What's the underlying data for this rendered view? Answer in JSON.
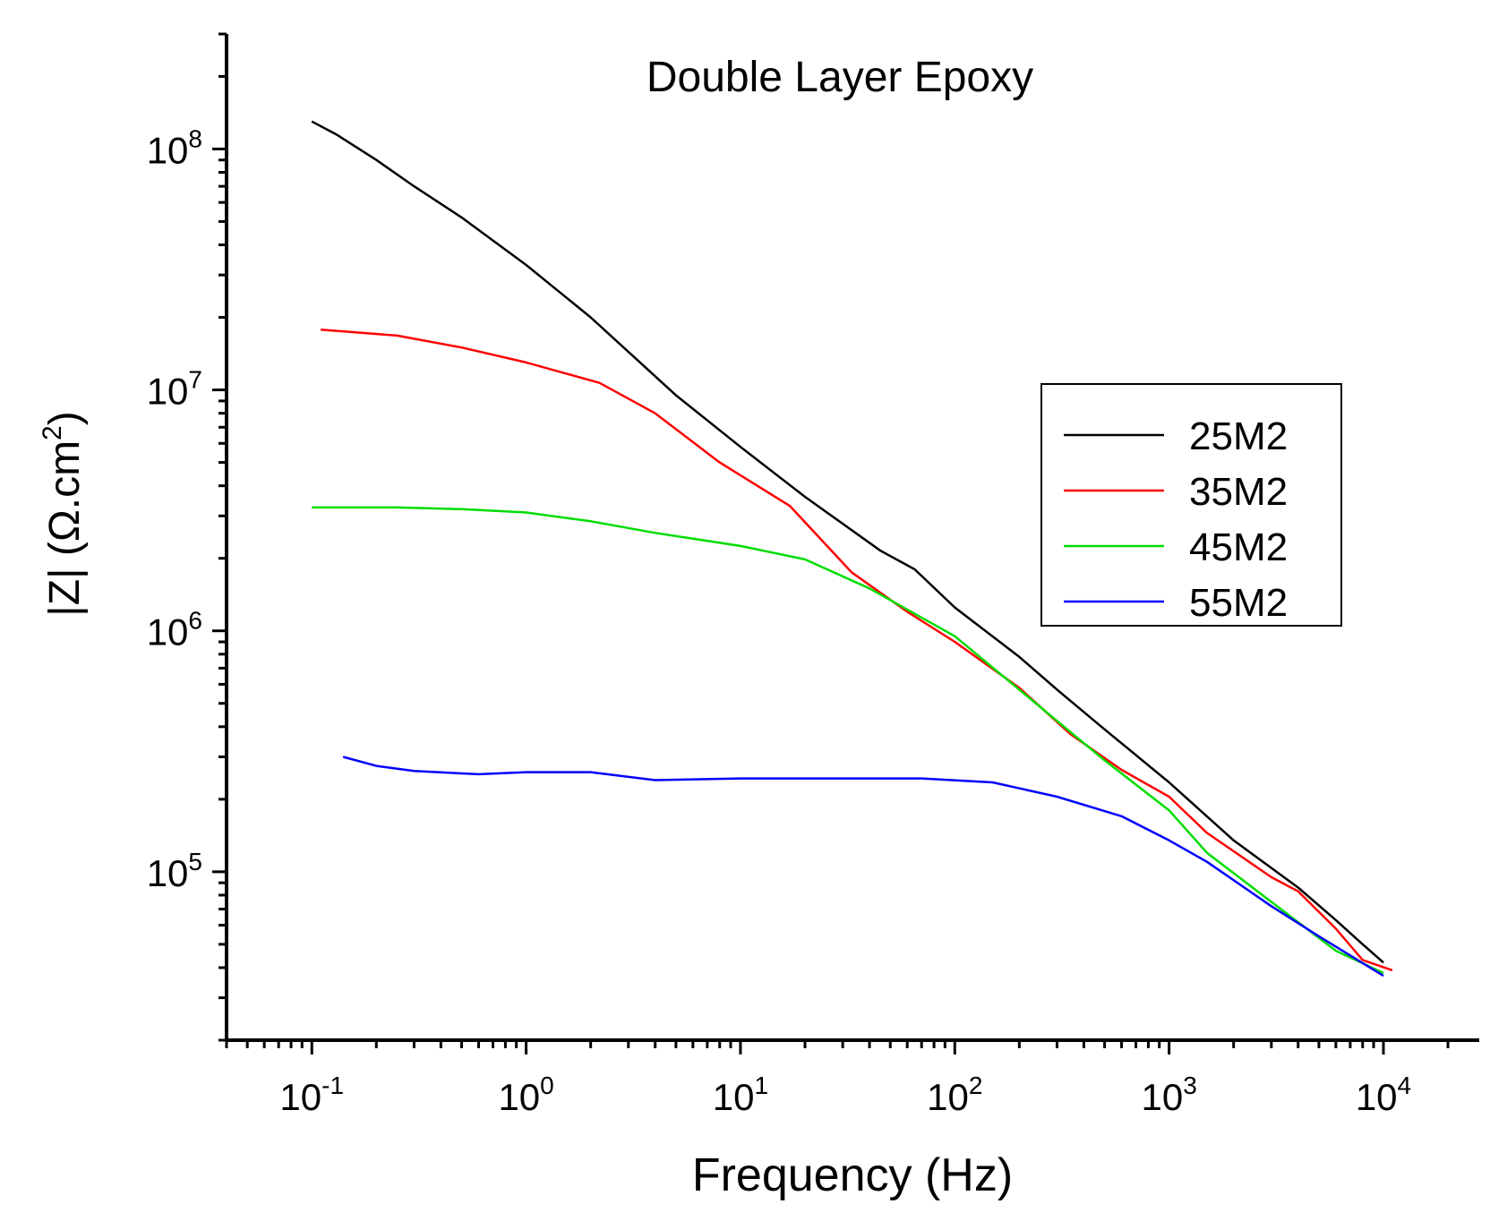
{
  "chart_data": {
    "type": "line",
    "title": "Double Layer Epoxy",
    "xlabel": "Frequency (Hz)",
    "ylabel_main": "|Z| (Ω.cm",
    "ylabel_sup": "2",
    "ylabel_end": ")",
    "x_scale": "log",
    "y_scale": "log",
    "xlim": [
      0.04,
      28000
    ],
    "ylim": [
      20000,
      300000000
    ],
    "x_ticks": [
      {
        "base": "10",
        "exp": "-1",
        "value": 0.1
      },
      {
        "base": "10",
        "exp": "0",
        "value": 1
      },
      {
        "base": "10",
        "exp": "1",
        "value": 10
      },
      {
        "base": "10",
        "exp": "2",
        "value": 100
      },
      {
        "base": "10",
        "exp": "3",
        "value": 1000
      },
      {
        "base": "10",
        "exp": "4",
        "value": 10000
      }
    ],
    "y_ticks": [
      {
        "base": "10",
        "exp": "5",
        "value": 100000
      },
      {
        "base": "10",
        "exp": "6",
        "value": 1000000
      },
      {
        "base": "10",
        "exp": "7",
        "value": 10000000
      },
      {
        "base": "10",
        "exp": "8",
        "value": 100000000
      }
    ],
    "legend_position": "right",
    "series": [
      {
        "name": "25M2",
        "color": "#000000",
        "x": [
          0.1,
          0.13,
          0.2,
          0.3,
          0.5,
          1,
          2,
          5,
          10,
          20,
          45,
          65,
          100,
          200,
          300,
          500,
          1000,
          2000,
          4000,
          6000,
          8000,
          10000
        ],
        "y": [
          130000000,
          115000000,
          90000000,
          70000000,
          52000000,
          33000000,
          20000000,
          9500000,
          5800000,
          3600000,
          2150000,
          1800000,
          1250000,
          780000,
          570000,
          390000,
          235000,
          135000,
          86000,
          63000,
          50000,
          42000
        ]
      },
      {
        "name": "35M2",
        "color": "#ff0000",
        "x": [
          0.11,
          0.25,
          0.5,
          1,
          2.2,
          4,
          8,
          17,
          33,
          60,
          100,
          200,
          350,
          600,
          1000,
          1500,
          3000,
          4000,
          6000,
          8000,
          11000
        ],
        "y": [
          17800000,
          16800000,
          15000000,
          13000000,
          10700000,
          8000000,
          5000000,
          3300000,
          1750000,
          1200000,
          900000,
          580000,
          370000,
          265000,
          205000,
          145000,
          95000,
          83000,
          58000,
          43000,
          39000
        ]
      },
      {
        "name": "45M2",
        "color": "#00dd00",
        "x": [
          0.1,
          0.25,
          0.5,
          1,
          2,
          4,
          10,
          20,
          40,
          100,
          200,
          500,
          1000,
          1500,
          3000,
          6000,
          10000
        ],
        "y": [
          3250000,
          3250000,
          3200000,
          3100000,
          2850000,
          2550000,
          2250000,
          1980000,
          1500000,
          950000,
          570000,
          290000,
          180000,
          120000,
          75000,
          47000,
          38000
        ]
      },
      {
        "name": "55M2",
        "color": "#0000ff",
        "x": [
          0.14,
          0.2,
          0.3,
          0.6,
          1,
          2,
          4,
          10,
          30,
          70,
          150,
          300,
          600,
          1000,
          1500,
          3000,
          5000,
          10000
        ],
        "y": [
          300000,
          275000,
          262000,
          254000,
          259000,
          259000,
          240000,
          244000,
          244000,
          244000,
          235000,
          205000,
          170000,
          135000,
          110000,
          72000,
          54000,
          37000
        ]
      }
    ]
  }
}
